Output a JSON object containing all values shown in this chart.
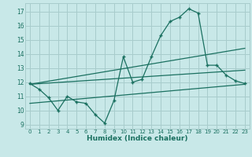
{
  "title": "",
  "xlabel": "Humidex (Indice chaleur)",
  "bg_color": "#c8e8e8",
  "grid_color": "#a8cccc",
  "line_color": "#1a7060",
  "xlim": [
    -0.5,
    23.5
  ],
  "ylim": [
    8.7,
    17.6
  ],
  "xticks": [
    0,
    1,
    2,
    3,
    4,
    5,
    6,
    7,
    8,
    9,
    10,
    11,
    12,
    13,
    14,
    15,
    16,
    17,
    18,
    19,
    20,
    21,
    22,
    23
  ],
  "yticks": [
    9,
    10,
    11,
    12,
    13,
    14,
    15,
    16,
    17
  ],
  "line1_x": [
    0,
    1,
    2,
    3,
    4,
    5,
    6,
    7,
    8,
    9,
    10,
    11,
    12,
    13,
    14,
    15,
    16,
    17,
    18,
    19,
    20,
    21,
    22,
    23
  ],
  "line1_y": [
    11.9,
    11.5,
    10.9,
    10.0,
    11.0,
    10.6,
    10.5,
    9.7,
    9.1,
    10.7,
    13.8,
    12.0,
    12.2,
    13.8,
    15.3,
    16.3,
    16.6,
    17.2,
    16.9,
    13.2,
    13.2,
    12.5,
    12.1,
    11.9
  ],
  "trend1_x": [
    0,
    23
  ],
  "trend1_y": [
    11.85,
    14.4
  ],
  "trend2_x": [
    0,
    23
  ],
  "trend2_y": [
    11.85,
    12.85
  ],
  "trend3_x": [
    0,
    23
  ],
  "trend3_y": [
    10.5,
    11.85
  ]
}
